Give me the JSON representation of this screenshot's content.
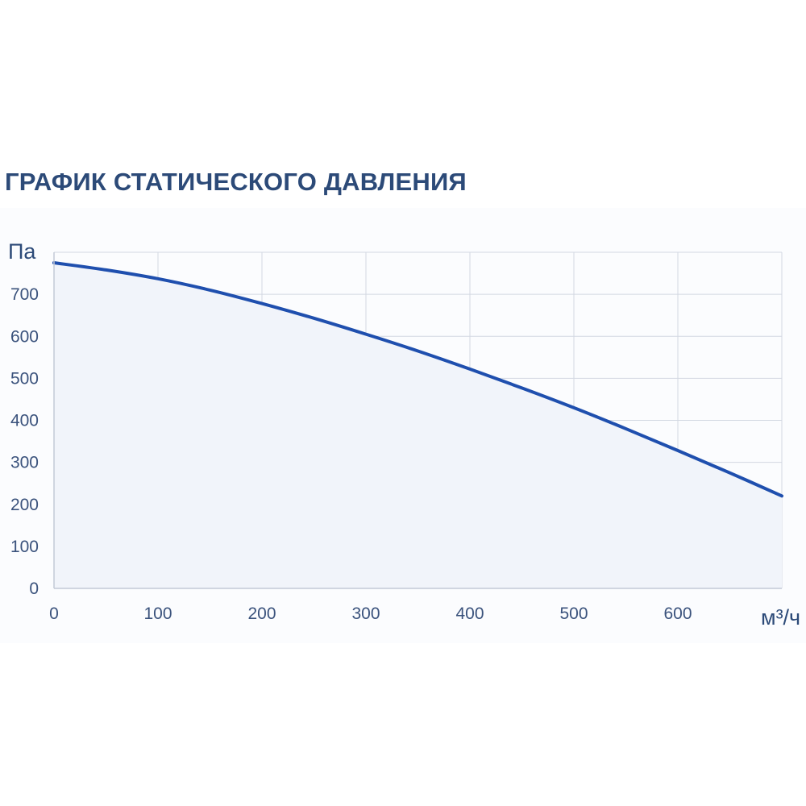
{
  "chart_data": {
    "type": "area",
    "title": "ГРАФИК СТАТИЧЕСКОГО ДАВЛЕНИЯ",
    "ylabel": "Па",
    "xlabel": "м³/ч",
    "xlim": [
      0,
      700
    ],
    "ylim": [
      0,
      800
    ],
    "x_ticks": [
      "0",
      "100",
      "200",
      "300",
      "400",
      "500",
      "600"
    ],
    "y_ticks": [
      "0",
      "100",
      "200",
      "300",
      "400",
      "500",
      "600",
      "700"
    ],
    "grid": true,
    "series": [
      {
        "x": [
          0,
          50,
          100,
          150,
          200,
          250,
          300,
          350,
          400,
          450,
          500,
          550,
          600,
          650,
          700
        ],
        "values": [
          775,
          758,
          737,
          710,
          678,
          643,
          605,
          565,
          522,
          477,
          430,
          380,
          328,
          275,
          220
        ],
        "color": "#1f4fae"
      }
    ],
    "colors": {
      "line": "#1f4fae",
      "fill": "#f1f4fa",
      "grid": "#d3d8e2",
      "tick_text": "#3a527c",
      "title": "#2c4a78"
    }
  }
}
